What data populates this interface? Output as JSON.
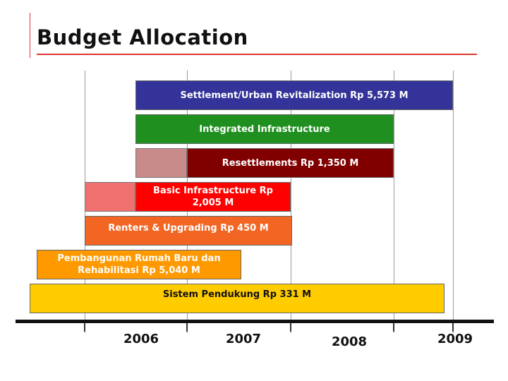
{
  "title": "Budget Allocation",
  "bars": [
    {
      "label": "Settlement/Urban Revitalization Rp 5,573 M"
    },
    {
      "label": "Integrated Infrastructure"
    },
    {
      "label": "Resettlements Rp 1,350 M"
    },
    {
      "label": "Basic Infrastructure Rp 2,005 M"
    },
    {
      "label": "Renters & Upgrading Rp 450 M"
    },
    {
      "label": "Pembangunan Rumah Baru dan Rehabilitasi Rp 5,040 M"
    },
    {
      "label": "Sistem Pendukung Rp 331 M"
    }
  ],
  "years": [
    "2006",
    "2007",
    "2008",
    "2009"
  ]
}
